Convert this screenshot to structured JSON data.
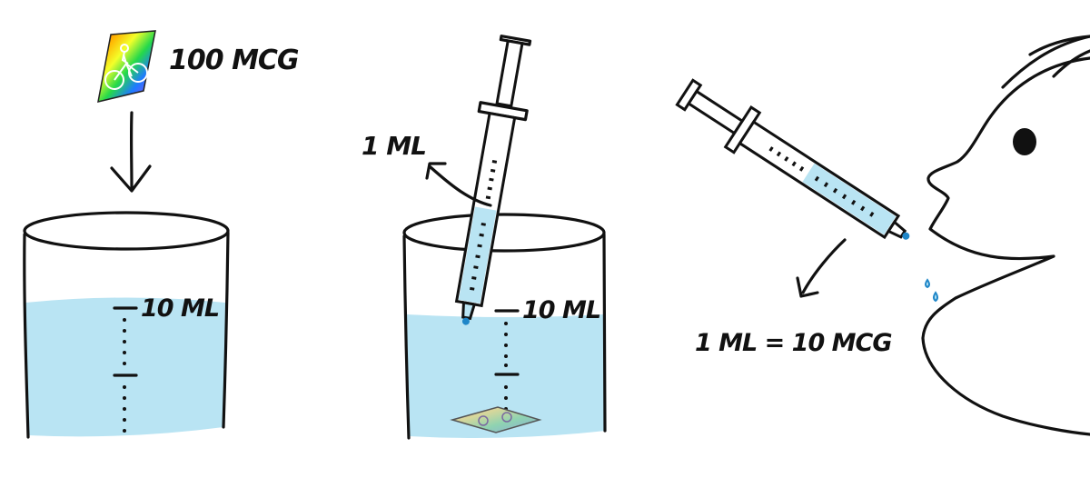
{
  "labels": {
    "blotter_dose": "100 MCG",
    "beaker_left_mark": "10 ML",
    "syringe_draw_amount": "1 ML",
    "beaker_middle_mark": "10 ML",
    "dose_conversion": "1 ML = 10 MCG"
  },
  "colors": {
    "ink": "#111111",
    "liquid": "#b9e4f3",
    "drop": "#1f86c8",
    "background": "#ffffff"
  },
  "icons": {
    "blotter": "rainbow-bicycle-blotter-icon",
    "arrow": "hand-drawn-arrow-icon",
    "syringe": "syringe-icon",
    "face": "cartoon-face-icon"
  }
}
